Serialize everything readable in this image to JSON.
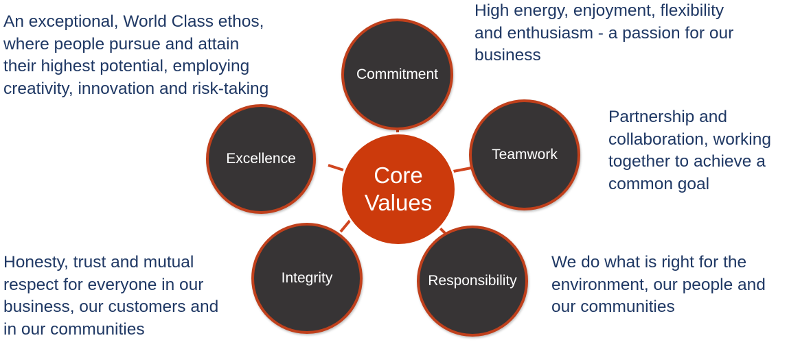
{
  "center": {
    "label": "Core\nValues"
  },
  "values": [
    {
      "label": "Commitment",
      "description": "High energy, enjoyment, flexibility\nand enthusiasm - a passion for our\nbusiness"
    },
    {
      "label": "Teamwork",
      "description": "Partnership and\ncollaboration, working\ntogether to achieve a\ncommon goal"
    },
    {
      "label": "Responsibility",
      "description": "We do what is right for the\nenvironment, our people and\nour communities"
    },
    {
      "label": "Integrity",
      "description": "Honesty, trust and mutual\nrespect for everyone in our\nbusiness, our customers and\nin our communities"
    },
    {
      "label": "Excellence",
      "description": "An exceptional, World Class ethos,\nwhere people pursue and attain\ntheir highest potential, employing\ncreativity, innovation and risk-taking"
    }
  ],
  "colors": {
    "center_fill": "#cc3a0c",
    "node_fill": "#373435",
    "node_border": "#c0401c",
    "connector": "#d0451f",
    "description_text": "#1f3864"
  }
}
